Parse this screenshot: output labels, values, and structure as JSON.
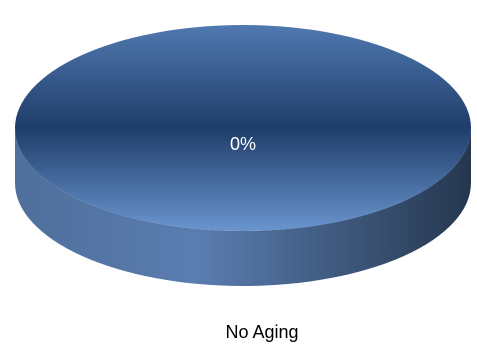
{
  "chart_data": {
    "type": "pie",
    "categories": [
      "No Aging"
    ],
    "values": [
      0
    ],
    "value_labels": [
      "0%"
    ],
    "colors": [
      "#2c5388"
    ]
  }
}
